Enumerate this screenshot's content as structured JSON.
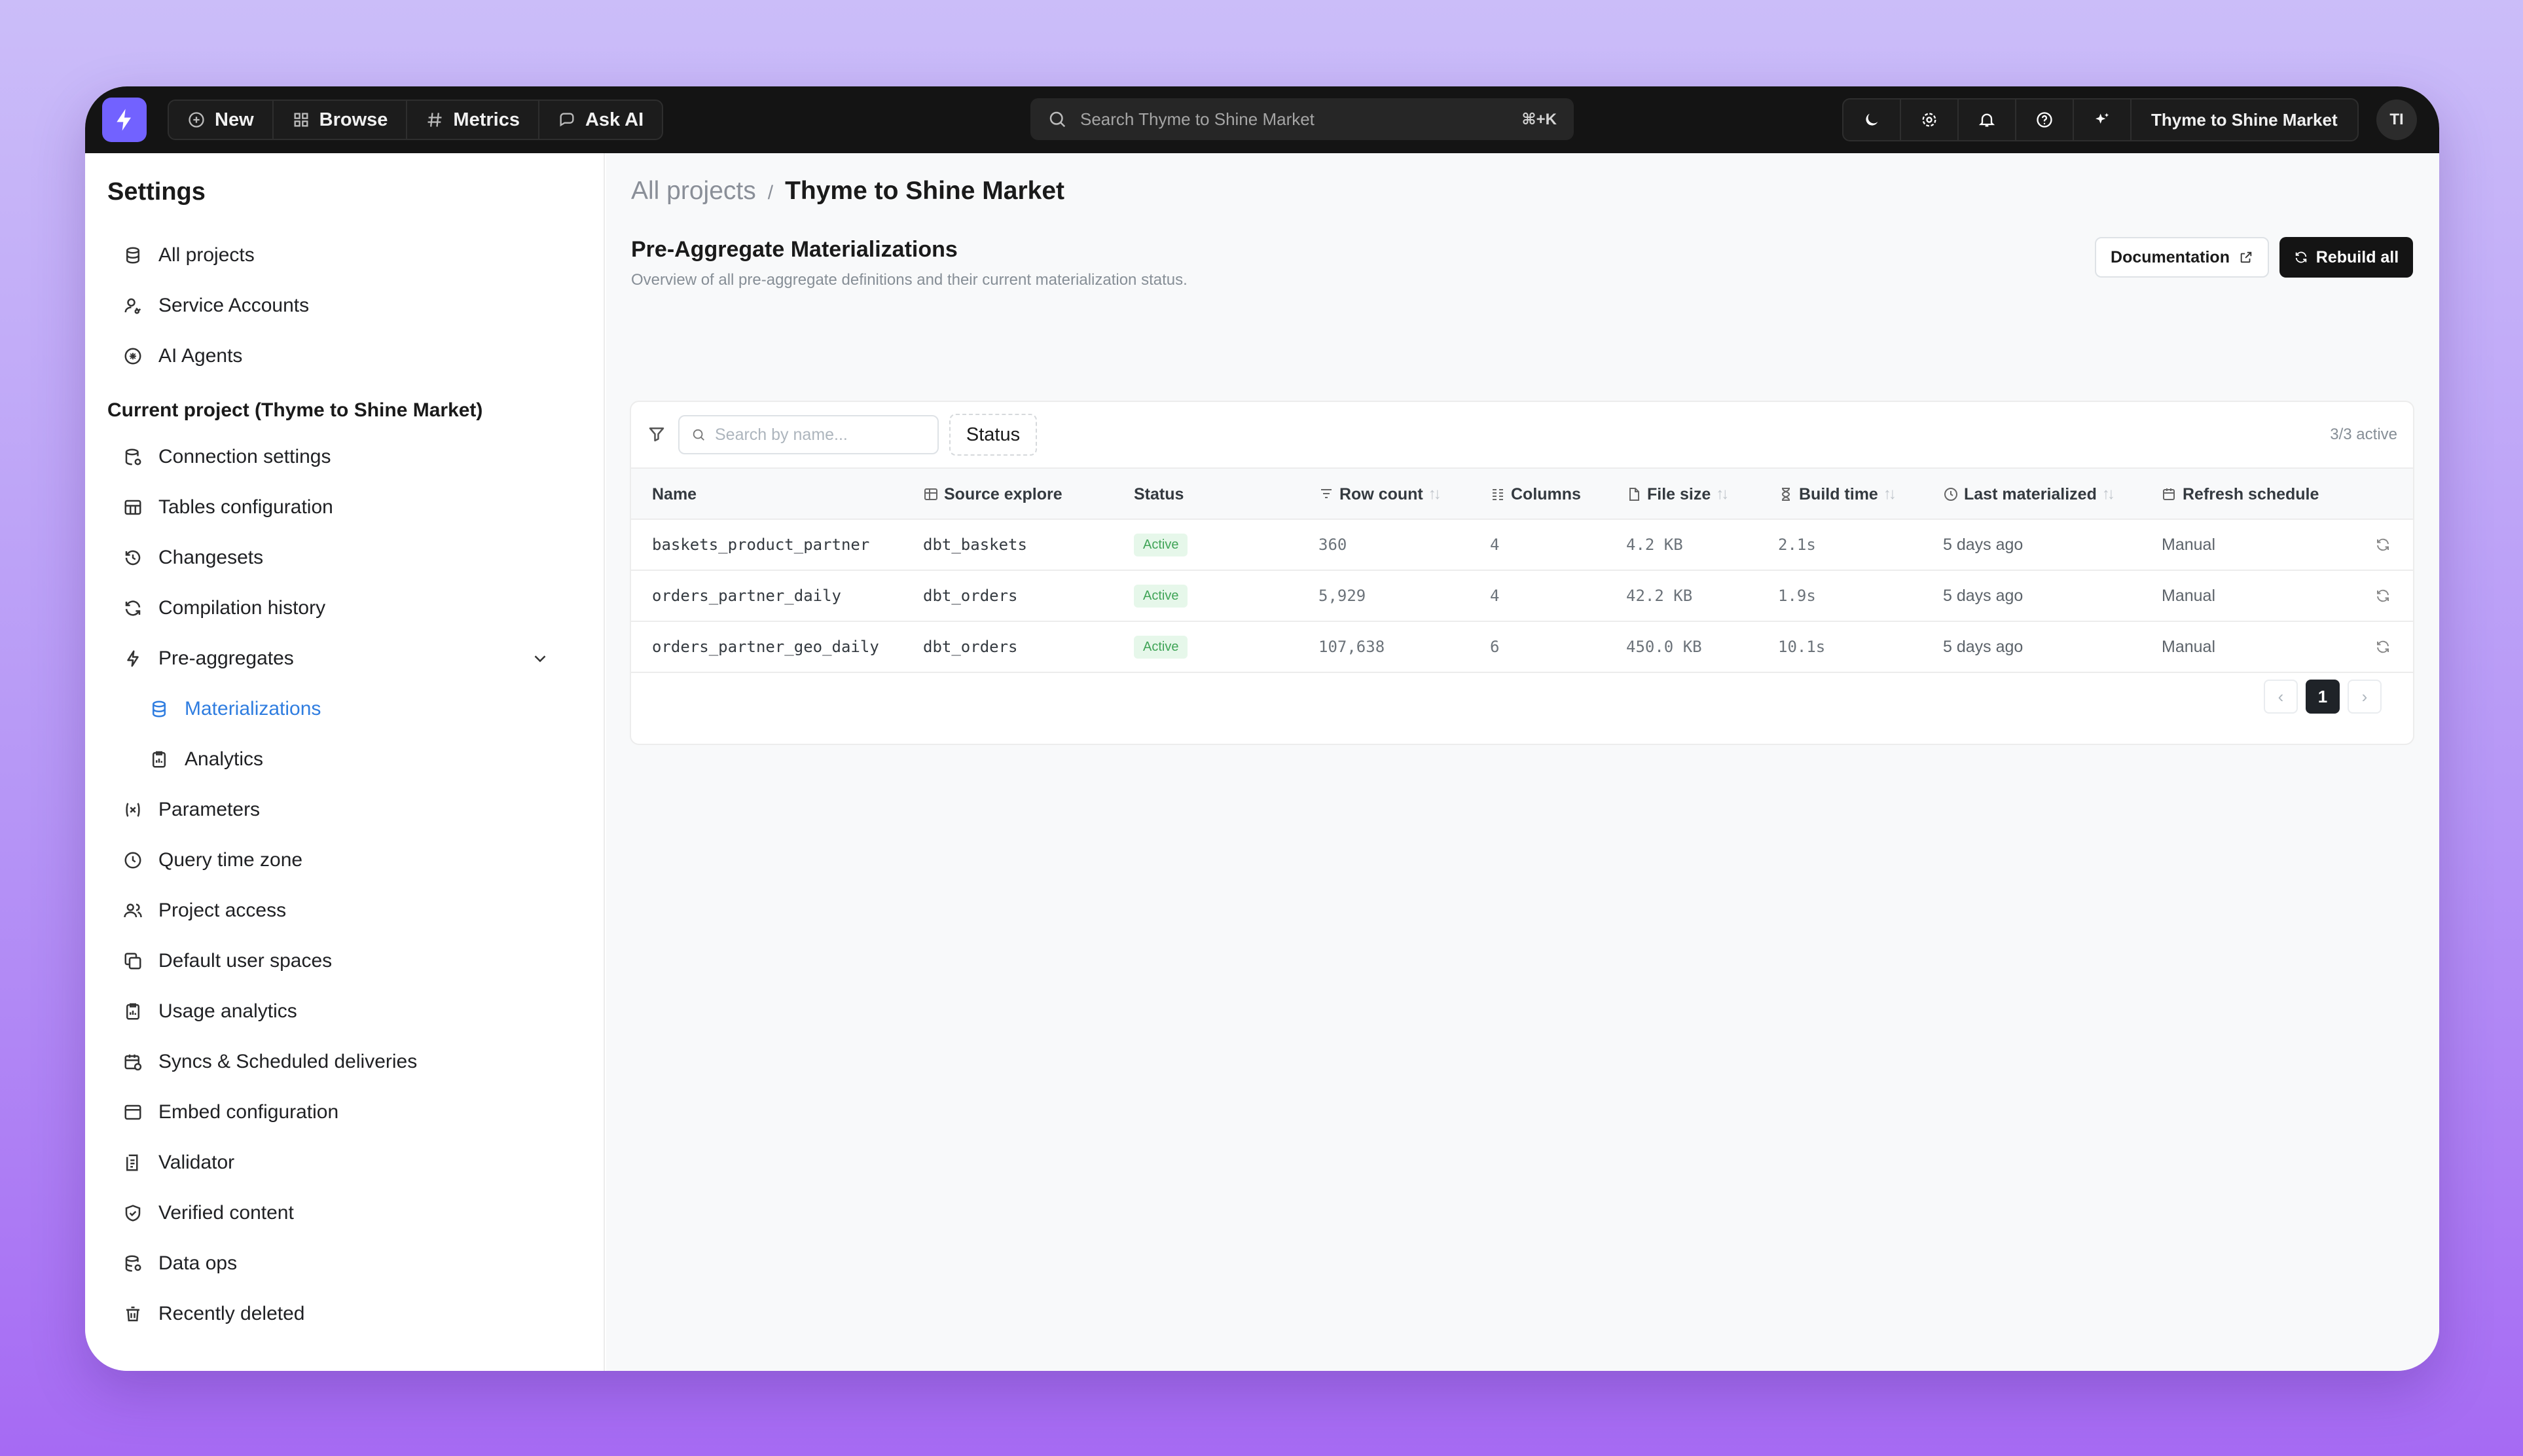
{
  "topbar": {
    "nav": [
      {
        "label": "New",
        "icon": "plus-circle-icon"
      },
      {
        "label": "Browse",
        "icon": "grid-icon"
      },
      {
        "label": "Metrics",
        "icon": "hash-icon"
      },
      {
        "label": "Ask AI",
        "icon": "ai-chat-icon"
      }
    ],
    "search_placeholder": "Search Thyme to Shine Market",
    "search_shortcut": "⌘+K",
    "tools": [
      "moon-icon",
      "gear-icon",
      "bell-icon",
      "help-icon",
      "sparkles-icon"
    ],
    "project_name": "Thyme to Shine Market",
    "avatar_initials": "TI"
  },
  "sidebar": {
    "title": "Settings",
    "general_items": [
      {
        "label": "All projects",
        "icon": "database-icon"
      },
      {
        "label": "Service Accounts",
        "icon": "user-key-icon"
      },
      {
        "label": "AI Agents",
        "icon": "ai-agent-icon"
      }
    ],
    "project_section_title": "Current project (Thyme to Shine Market)",
    "project_items": [
      {
        "label": "Connection settings",
        "icon": "database-gear-icon"
      },
      {
        "label": "Tables configuration",
        "icon": "table-icon"
      },
      {
        "label": "Changesets",
        "icon": "history-icon"
      },
      {
        "label": "Compilation history",
        "icon": "refresh-icon"
      },
      {
        "label": "Pre-aggregates",
        "icon": "bolt-icon"
      },
      {
        "label": "Materializations",
        "icon": "database-icon"
      },
      {
        "label": "Analytics",
        "icon": "clipboard-icon"
      },
      {
        "label": "Parameters",
        "icon": "variable-icon"
      },
      {
        "label": "Query time zone",
        "icon": "clock-icon"
      },
      {
        "label": "Project access",
        "icon": "users-icon"
      },
      {
        "label": "Default user spaces",
        "icon": "copy-icon"
      },
      {
        "label": "Usage analytics",
        "icon": "clipboard-icon"
      },
      {
        "label": "Syncs & Scheduled deliveries",
        "icon": "calendar-sync-icon"
      },
      {
        "label": "Embed configuration",
        "icon": "browser-icon"
      },
      {
        "label": "Validator",
        "icon": "checklist-icon"
      },
      {
        "label": "Verified content",
        "icon": "shield-check-icon"
      },
      {
        "label": "Data ops",
        "icon": "database-cog-icon"
      },
      {
        "label": "Recently deleted",
        "icon": "trash-icon"
      }
    ]
  },
  "main": {
    "breadcrumb": {
      "parent": "All projects",
      "separator": "/",
      "current": "Thyme to Shine Market"
    },
    "title": "Pre-Aggregate Materializations",
    "subtitle": "Overview of all pre-aggregate definitions and their current materialization status.",
    "documentation_label": "Documentation",
    "rebuild_label": "Rebuild all",
    "table": {
      "search_placeholder": "Search by name...",
      "status_filter_label": "Status",
      "active_count": "3/3 active",
      "columns": {
        "name": "Name",
        "source": "Source explore",
        "status": "Status",
        "rows": "Row count",
        "columns": "Columns",
        "size": "File size",
        "build": "Build time",
        "last": "Last materialized",
        "refresh": "Refresh schedule"
      },
      "rows": [
        {
          "name": "baskets_product_partner",
          "source": "dbt_baskets",
          "status": "Active",
          "rows": "360",
          "columns": "4",
          "size": "4.2 KB",
          "build": "2.1s",
          "last": "5 days ago",
          "refresh": "Manual"
        },
        {
          "name": "orders_partner_daily",
          "source": "dbt_orders",
          "status": "Active",
          "rows": "5,929",
          "columns": "4",
          "size": "42.2 KB",
          "build": "1.9s",
          "last": "5 days ago",
          "refresh": "Manual"
        },
        {
          "name": "orders_partner_geo_daily",
          "source": "dbt_orders",
          "status": "Active",
          "rows": "107,638",
          "columns": "6",
          "size": "450.0 KB",
          "build": "10.1s",
          "last": "5 days ago",
          "refresh": "Manual"
        }
      ],
      "pagination": {
        "prev": "‹",
        "current_page": "1",
        "next": "›"
      }
    }
  },
  "colors": {
    "accent": "#7262ff",
    "active_nav": "#2f7de0",
    "badge_bg": "#e6f7ea",
    "badge_fg": "#40a457"
  }
}
